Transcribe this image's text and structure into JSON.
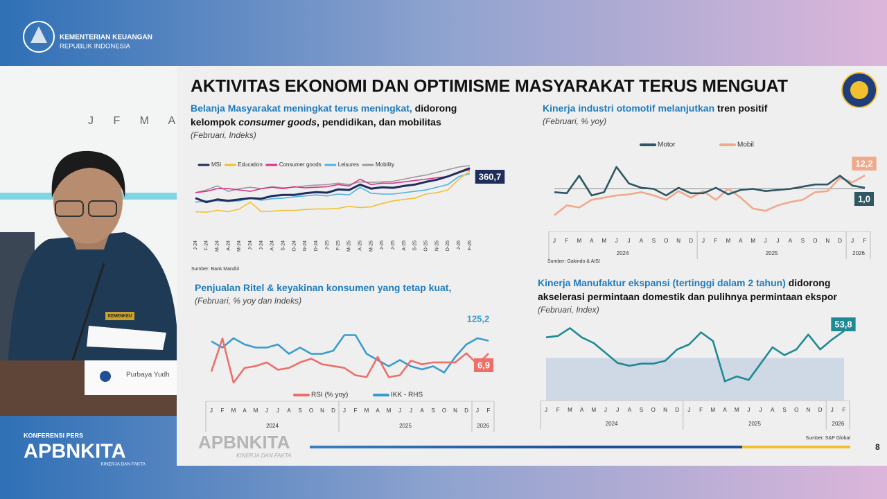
{
  "header": {
    "ministry": "KEMENTERIAN KEUANGAN",
    "country": "REPUBLIK INDONESIA"
  },
  "slide": {
    "title": "AKTIVITAS EKONOMI DAN OPTIMISME MASYARAKAT TERUS MENGUAT",
    "page": "8",
    "footer_brand": "APBNKITA",
    "footer_tagline": "KINERJA DAN FAKTA"
  },
  "broadcast": {
    "event": "KONFERENSI PERS",
    "brand": "APBNKITA",
    "tagline": "KINERJA DAN FAKTA",
    "speaker": "Purbaya Yudh",
    "backdrop_letters": "J F M A",
    "uniform_badge": "KEMENKEU"
  },
  "chart_data": [
    {
      "type": "line",
      "title_lines": [
        [
          {
            "text": "Belanja Masyarakat meningkat terus meningkat,",
            "style": "lead"
          },
          {
            "text": " didorong",
            "style": "plain"
          }
        ],
        [
          {
            "text": "kelompok ",
            "style": "plain"
          },
          {
            "text": "consumer goods",
            "style": "italic"
          },
          {
            "text": ", pendidikan, dan mobilitas",
            "style": "plain"
          }
        ]
      ],
      "subtitle": "(Februari, Indeks)",
      "source": "Sumber: Bank Mandiri",
      "categories": [
        "J-24",
        "F-24",
        "M-24",
        "A-24",
        "M-24",
        "J-24",
        "J-24",
        "A-24",
        "S-24",
        "O-24",
        "N-24",
        "D-24",
        "J-25",
        "F-25",
        "M-25",
        "A-25",
        "M-25",
        "J-25",
        "J-25",
        "A-25",
        "S-25",
        "O-25",
        "N-25",
        "D-25",
        "J-26",
        "F-26"
      ],
      "ylim": [
        150,
        380
      ],
      "series": [
        {
          "name": "MSI",
          "color": "#1f2d5c",
          "values": [
            250,
            235,
            245,
            240,
            245,
            250,
            248,
            258,
            262,
            262,
            268,
            272,
            270,
            282,
            280,
            300,
            285,
            290,
            288,
            295,
            300,
            310,
            318,
            330,
            345,
            360.7
          ],
          "value_labels": [
            null,
            null,
            null,
            null,
            null,
            null,
            null,
            null,
            null,
            null,
            null,
            null,
            null,
            null,
            null,
            null,
            null,
            null,
            null,
            null,
            null,
            null,
            null,
            null,
            null,
            "360,7"
          ]
        },
        {
          "name": "Education",
          "color": "#f2c02f",
          "values": [
            200,
            198,
            205,
            200,
            210,
            235,
            200,
            202,
            205,
            205,
            208,
            210,
            210,
            212,
            220,
            215,
            218,
            230,
            240,
            245,
            250,
            265,
            270,
            280,
            320,
            350
          ]
        },
        {
          "name": "Consumer goods",
          "color": "#d6338a",
          "values": [
            270,
            275,
            285,
            285,
            280,
            275,
            285,
            290,
            285,
            292,
            288,
            290,
            292,
            300,
            295,
            320,
            300,
            305,
            305,
            310,
            315,
            320,
            325,
            330,
            345,
            355
          ]
        },
        {
          "name": "Leisures",
          "color": "#4fb3e0",
          "values": [
            235,
            240,
            240,
            238,
            240,
            250,
            242,
            248,
            250,
            255,
            258,
            262,
            258,
            265,
            262,
            290,
            268,
            265,
            265,
            270,
            275,
            280,
            290,
            300,
            330,
            340
          ]
        },
        {
          "name": "Mobility",
          "color": "#9a9a9a",
          "values": [
            270,
            280,
            295,
            275,
            285,
            290,
            285,
            292,
            288,
            290,
            295,
            298,
            300,
            305,
            300,
            310,
            308,
            310,
            312,
            320,
            328,
            335,
            345,
            355,
            365,
            370
          ]
        }
      ]
    },
    {
      "type": "line",
      "title_lines": [
        [
          {
            "text": "Kinerja industri otomotif melanjutkan",
            "style": "lead"
          },
          {
            "text": " tren positif",
            "style": "plain"
          }
        ]
      ],
      "subtitle": "(Februari, % yoy)",
      "source": "Sumber: Gakindo & AISI",
      "categories": [
        "J",
        "F",
        "M",
        "A",
        "M",
        "J",
        "J",
        "A",
        "S",
        "O",
        "N",
        "D",
        "J",
        "F",
        "M",
        "A",
        "M",
        "J",
        "J",
        "A",
        "S",
        "O",
        "N",
        "D",
        "J",
        "F"
      ],
      "year_labels": [
        "2024",
        "2025",
        "2026"
      ],
      "ylim": [
        -30,
        30
      ],
      "series": [
        {
          "name": "Motor",
          "color": "#2e5663",
          "values": [
            -3,
            -4,
            12,
            -6,
            -3,
            20,
            5,
            1,
            0,
            -6,
            1,
            -4,
            -4,
            1,
            -5,
            -1,
            0,
            -2,
            -1,
            0,
            2,
            4,
            4,
            12,
            3,
            1.0
          ],
          "value_labels": [
            null,
            null,
            null,
            null,
            null,
            null,
            null,
            null,
            null,
            null,
            null,
            null,
            null,
            null,
            null,
            null,
            null,
            null,
            null,
            null,
            null,
            null,
            null,
            null,
            null,
            "1,0"
          ]
        },
        {
          "name": "Mobil",
          "color": "#f0a98a",
          "values": [
            -24,
            -15,
            -17,
            -10,
            -8,
            -6,
            -5,
            -3,
            -6,
            -10,
            -2,
            -8,
            -2,
            -10,
            0,
            -8,
            -18,
            -20,
            -15,
            -12,
            -10,
            -3,
            -2,
            10,
            6,
            12.2
          ],
          "value_labels": [
            null,
            null,
            null,
            null,
            null,
            null,
            null,
            null,
            null,
            null,
            null,
            null,
            null,
            null,
            null,
            null,
            null,
            null,
            null,
            null,
            null,
            null,
            null,
            null,
            null,
            "12,2"
          ]
        }
      ]
    },
    {
      "type": "line",
      "title_lines": [
        [
          {
            "text": "Penjualan Ritel & keyakinan konsumen yang tetap kuat,",
            "style": "lead"
          }
        ]
      ],
      "subtitle": "(Februari, % yoy dan Indeks)",
      "categories": [
        "J",
        "F",
        "M",
        "A",
        "M",
        "J",
        "J",
        "A",
        "S",
        "O",
        "N",
        "D",
        "J",
        "F",
        "M",
        "A",
        "M",
        "J",
        "J",
        "A",
        "S",
        "O",
        "N",
        "D",
        "J",
        "F"
      ],
      "year_labels": [
        "2024",
        "2025",
        "2026"
      ],
      "ylim": [
        -12,
        22
      ],
      "y2lim": [
        110,
        130
      ],
      "series": [
        {
          "name": "RSI (% yoy)",
          "color": "#ec6f6a",
          "values": [
            -3,
            15,
            -9,
            -1,
            0,
            2,
            -2,
            -1,
            2,
            4,
            1,
            0,
            -1,
            -5,
            -6,
            5,
            -6,
            -5,
            3,
            1,
            2,
            2,
            2,
            7,
            1,
            6.9
          ],
          "value_labels": [
            null,
            null,
            null,
            null,
            null,
            null,
            null,
            null,
            null,
            null,
            null,
            null,
            null,
            null,
            null,
            null,
            null,
            null,
            null,
            null,
            null,
            null,
            null,
            null,
            null,
            "6,9"
          ]
        },
        {
          "name": "IKK - RHS",
          "color": "#3a9ccc",
          "axis": "y2",
          "values": [
            125,
            123,
            126,
            124,
            123,
            123,
            124,
            121,
            123,
            121,
            121,
            122,
            127,
            127,
            121,
            119,
            117,
            119,
            117,
            116,
            117,
            115,
            120,
            124,
            126,
            125.2
          ],
          "value_labels": [
            null,
            null,
            null,
            null,
            null,
            null,
            null,
            null,
            null,
            null,
            null,
            null,
            null,
            null,
            null,
            null,
            null,
            null,
            null,
            null,
            null,
            null,
            null,
            null,
            null,
            "125,2"
          ]
        }
      ]
    },
    {
      "type": "line",
      "title_lines": [
        [
          {
            "text": "Kinerja Manufaktur ekspansi (tertinggi dalam 2 tahun)",
            "style": "lead"
          },
          {
            "text": " didorong",
            "style": "plain"
          }
        ],
        [
          {
            "text": "akselerasi permintaan domestik dan pulihnya permintaan ekspor",
            "style": "plain"
          }
        ]
      ],
      "subtitle": "(Februari, Index)",
      "source": "Sumber: S&P Global",
      "categories": [
        "J",
        "F",
        "M",
        "A",
        "M",
        "J",
        "J",
        "A",
        "S",
        "O",
        "N",
        "D",
        "J",
        "F",
        "M",
        "A",
        "M",
        "J",
        "J",
        "A",
        "S",
        "O",
        "N",
        "D",
        "J",
        "F"
      ],
      "year_labels": [
        "2024",
        "2025",
        "2026"
      ],
      "ylim": [
        44,
        56
      ],
      "shade_below": 50,
      "series": [
        {
          "color": "#1f8a94",
          "values": [
            52.9,
            53.1,
            54.2,
            52.9,
            52.1,
            50.7,
            49.3,
            48.9,
            49.2,
            49.2,
            49.6,
            51.2,
            51.9,
            53.6,
            52.4,
            46.7,
            47.4,
            46.9,
            49.2,
            51.5,
            50.4,
            51.2,
            53.3,
            51.2,
            52.6,
            53.8
          ],
          "value_labels": [
            null,
            null,
            null,
            null,
            null,
            null,
            null,
            null,
            null,
            null,
            null,
            null,
            null,
            null,
            null,
            null,
            null,
            null,
            null,
            null,
            null,
            null,
            null,
            null,
            null,
            "53,8"
          ]
        }
      ]
    }
  ]
}
